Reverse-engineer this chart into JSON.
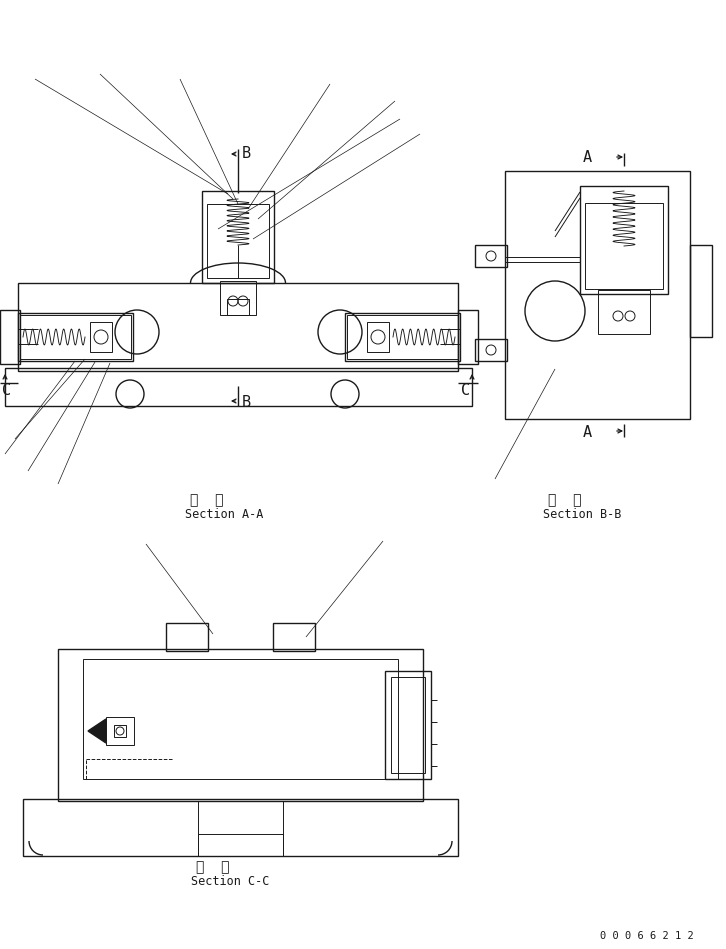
{
  "bg_color": "#ffffff",
  "line_color": "#1a1a1a",
  "fig_width": 7.26,
  "fig_height": 9.49,
  "dpi": 100,
  "section_aa": [
    "断  面",
    "Section A-A"
  ],
  "section_bb": [
    "断  面",
    "Section B-B"
  ],
  "section_cc": [
    "断  面",
    "Section C-C"
  ],
  "part_number": "0 0 0 6 6 2 1 2"
}
